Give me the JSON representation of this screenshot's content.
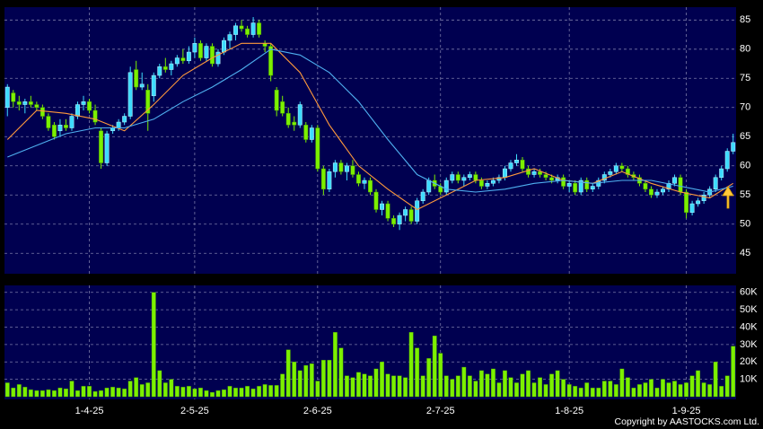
{
  "chart_data": [
    {
      "type": "candlestick",
      "up_color": "#3ddcff",
      "down_color": "#7cf000",
      "ohlc": [
        [
          70,
          74,
          68.5,
          73.5
        ],
        [
          72.5,
          73,
          70,
          71
        ],
        [
          71,
          72,
          69.5,
          70.5
        ],
        [
          70.5,
          71.5,
          69,
          71
        ],
        [
          71,
          72,
          70,
          70.5
        ],
        [
          70.5,
          71,
          69.5,
          70
        ],
        [
          70,
          70.5,
          68,
          68.5
        ],
        [
          68.5,
          69,
          66,
          66.5
        ],
        [
          67,
          67.5,
          64.5,
          65
        ],
        [
          66,
          68,
          65,
          67
        ],
        [
          67,
          68,
          66,
          66.5
        ],
        [
          66.5,
          69,
          66,
          68.5
        ],
        [
          68.5,
          71,
          68,
          70.5
        ],
        [
          70.5,
          72,
          69.5,
          71
        ],
        [
          71,
          71.5,
          69,
          69.5
        ],
        [
          69.5,
          70.5,
          67,
          67.5
        ],
        [
          66,
          66.5,
          59.5,
          60.5
        ],
        [
          60.5,
          66,
          60,
          65.5
        ],
        [
          66,
          67,
          65.5,
          66.5
        ],
        [
          66.5,
          68,
          66,
          67.5
        ],
        [
          67.5,
          69,
          67,
          68.5
        ],
        [
          68.5,
          77,
          68,
          76
        ],
        [
          76.5,
          78,
          73,
          73.5
        ],
        [
          73.5,
          76,
          73,
          74
        ],
        [
          73,
          74,
          66,
          69
        ],
        [
          72,
          76,
          71,
          75.5
        ],
        [
          75.5,
          77.5,
          75,
          77
        ],
        [
          77,
          78.5,
          76,
          76.5
        ],
        [
          76.5,
          78,
          75.5,
          77.5
        ],
        [
          77.5,
          79,
          77,
          78.5
        ],
        [
          78.5,
          80,
          77.5,
          78
        ],
        [
          78,
          80.5,
          77.5,
          79.5
        ],
        [
          79.5,
          82,
          78.5,
          81
        ],
        [
          81,
          81.5,
          78,
          78.5
        ],
        [
          78.5,
          81,
          78,
          80.5
        ],
        [
          80.5,
          81,
          77,
          77.5
        ],
        [
          77.5,
          80,
          77,
          79.5
        ],
        [
          79.5,
          82,
          79,
          81.5
        ],
        [
          81.5,
          83,
          80,
          82.5
        ],
        [
          82.5,
          84.5,
          81.5,
          84
        ],
        [
          84,
          85,
          83,
          83.5
        ],
        [
          83.5,
          84,
          82,
          82.5
        ],
        [
          82.5,
          85.5,
          82,
          84.5
        ],
        [
          84.5,
          85,
          82,
          82.5
        ],
        [
          81,
          81.5,
          79.5,
          80.5
        ],
        [
          80.5,
          81,
          74.5,
          75.5
        ],
        [
          73,
          73.5,
          68.5,
          69.5
        ],
        [
          71,
          72,
          68.5,
          69
        ],
        [
          69,
          70,
          66.5,
          67
        ],
        [
          67.5,
          68.5,
          66,
          67
        ],
        [
          67,
          71,
          66.5,
          70.5
        ],
        [
          67,
          67.5,
          64,
          64.5
        ],
        [
          64.5,
          67,
          64,
          66.5
        ],
        [
          66.5,
          67,
          59,
          59.5
        ],
        [
          59.5,
          60,
          55,
          56
        ],
        [
          56,
          59.5,
          55.5,
          59
        ],
        [
          59,
          61,
          58,
          60.5
        ],
        [
          60.5,
          61,
          58.5,
          59
        ],
        [
          59,
          60.5,
          57.5,
          60
        ],
        [
          60,
          61,
          58,
          58.5
        ],
        [
          58.5,
          59,
          56.5,
          57
        ],
        [
          57,
          58,
          56,
          57.5
        ],
        [
          57.5,
          58,
          55,
          55.5
        ],
        [
          55.5,
          56,
          52,
          52.5
        ],
        [
          52.5,
          54,
          51.5,
          53.5
        ],
        [
          53.5,
          54,
          50.5,
          51
        ],
        [
          51,
          51.5,
          49.5,
          50
        ],
        [
          50,
          52,
          49,
          51.5
        ],
        [
          51.5,
          53,
          50.5,
          52.5
        ],
        [
          52.5,
          53,
          50,
          50.5
        ],
        [
          50.5,
          54.5,
          50,
          54
        ],
        [
          54,
          56,
          53.5,
          55.5
        ],
        [
          55.5,
          58,
          55,
          57.5
        ],
        [
          57.5,
          58.5,
          56,
          56.5
        ],
        [
          56.5,
          57,
          55,
          55.5
        ],
        [
          55.5,
          58,
          55,
          57.5
        ],
        [
          57.5,
          59,
          57,
          58.5
        ],
        [
          58.5,
          59,
          57,
          57.5
        ],
        [
          57.5,
          58.5,
          56.5,
          58
        ],
        [
          58,
          59,
          57.5,
          58.5
        ],
        [
          58.5,
          59,
          57,
          57.5
        ],
        [
          57.5,
          58,
          56,
          56.5
        ],
        [
          56.5,
          57.5,
          56,
          57
        ],
        [
          57,
          58,
          56.5,
          57.5
        ],
        [
          57.5,
          58.5,
          57,
          58
        ],
        [
          58,
          60,
          57.5,
          59.5
        ],
        [
          59.5,
          61,
          59,
          60.5
        ],
        [
          60.5,
          62,
          60,
          61
        ],
        [
          61,
          61.5,
          59,
          59.5
        ],
        [
          59.5,
          60,
          58,
          58.5
        ],
        [
          58.5,
          59.5,
          58,
          59
        ],
        [
          59,
          59.5,
          58,
          58.5
        ],
        [
          58.5,
          59,
          57.5,
          58
        ],
        [
          58,
          58.5,
          57,
          57.5
        ],
        [
          57.5,
          58.5,
          57,
          58
        ],
        [
          58,
          58.5,
          56,
          56.5
        ],
        [
          56.5,
          57.5,
          55.5,
          57
        ],
        [
          57,
          57.5,
          55,
          55.5
        ],
        [
          55.5,
          58,
          55,
          57.5
        ],
        [
          57.5,
          58,
          55.5,
          56
        ],
        [
          56,
          57,
          55.5,
          56.5
        ],
        [
          56.5,
          58,
          56,
          57.5
        ],
        [
          57.5,
          59,
          57,
          58.5
        ],
        [
          58.5,
          59.5,
          58,
          59
        ],
        [
          59,
          60.5,
          58.5,
          60
        ],
        [
          60,
          60.5,
          59,
          59.5
        ],
        [
          59.5,
          60,
          58,
          58.5
        ],
        [
          58.5,
          59,
          57.5,
          58
        ],
        [
          58,
          58.5,
          56.5,
          57
        ],
        [
          57,
          57.5,
          55.5,
          56
        ],
        [
          56,
          56.5,
          54.5,
          55
        ],
        [
          55,
          56,
          54.5,
          55.5
        ],
        [
          55.5,
          56.5,
          55,
          56
        ],
        [
          56,
          57.5,
          55.5,
          57
        ],
        [
          57,
          58.5,
          56.5,
          58
        ],
        [
          58,
          58.5,
          55,
          55.5
        ],
        [
          55.5,
          56,
          51,
          52
        ],
        [
          52,
          54,
          51.5,
          53.5
        ],
        [
          53.5,
          54.5,
          53,
          54
        ],
        [
          54,
          55.5,
          53.5,
          55
        ],
        [
          55,
          56.5,
          54.5,
          56
        ],
        [
          56,
          58.5,
          55.5,
          58
        ],
        [
          58,
          60,
          57.5,
          59.5
        ],
        [
          59.5,
          63,
          59,
          62.5
        ],
        [
          62.5,
          65.5,
          62,
          64
        ]
      ],
      "lines": [
        {
          "color": "#ff9a3c",
          "x": [
            0,
            5,
            10,
            15,
            20,
            25,
            30,
            35,
            40,
            45,
            50,
            55,
            60,
            65,
            70,
            75,
            80,
            85,
            90,
            95,
            100,
            105,
            110,
            115,
            120,
            124
          ],
          "values": [
            64.5,
            69.5,
            69,
            68,
            66,
            70.5,
            75.5,
            78.5,
            81,
            81,
            76,
            67,
            60,
            56,
            52.5,
            55,
            57.5,
            58,
            59.5,
            57.5,
            57,
            59,
            57,
            55.5,
            54.5,
            57
          ]
        },
        {
          "color": "#4fb0f0",
          "x": [
            0,
            5,
            10,
            15,
            20,
            25,
            30,
            35,
            40,
            45,
            50,
            55,
            60,
            65,
            70,
            75,
            80,
            85,
            90,
            95,
            100,
            105,
            110,
            115,
            120,
            124
          ],
          "values": [
            61.5,
            63.5,
            65.5,
            66.5,
            66.5,
            68,
            71,
            73.5,
            76.5,
            80,
            79,
            76,
            71,
            64.5,
            58.5,
            56,
            55.5,
            56,
            57,
            57.5,
            57,
            57.5,
            57.5,
            56.5,
            55.5,
            56.5
          ]
        }
      ],
      "xlim": [
        -0.5,
        124.5
      ],
      "xticks": [
        {
          "value": 14,
          "label": "1-4-25"
        },
        {
          "value": 32,
          "label": "2-5-25"
        },
        {
          "value": 53,
          "label": "2-6-25"
        },
        {
          "value": 74,
          "label": "2-7-25"
        },
        {
          "value": 96,
          "label": "1-8-25"
        },
        {
          "value": 116,
          "label": "1-9-25"
        }
      ],
      "ylim": [
        41.5,
        87.2
      ],
      "yticks": [
        45,
        50,
        55,
        60,
        65,
        70,
        75,
        80,
        85
      ],
      "grid": true
    },
    {
      "type": "bar",
      "color": "#7cf000",
      "values": [
        8000,
        5000,
        7000,
        5500,
        4000,
        3500,
        3500,
        4000,
        3500,
        5000,
        4500,
        9000,
        3500,
        6000,
        6000,
        3000,
        3500,
        5000,
        5500,
        5000,
        4500,
        9000,
        11000,
        7000,
        8000,
        60000,
        15000,
        8000,
        10000,
        6000,
        5500,
        6000,
        4500,
        5000,
        3500,
        2500,
        3500,
        4000,
        6000,
        5000,
        5000,
        6000,
        4500,
        6000,
        7000,
        6500,
        6500,
        13000,
        27000,
        20000,
        15000,
        18000,
        19000,
        9000,
        21000,
        21000,
        37000,
        28000,
        12000,
        11000,
        14000,
        13000,
        12000,
        16000,
        20000,
        13000,
        12000,
        12000,
        11000,
        37000,
        28000,
        12000,
        22000,
        35000,
        25000,
        12000,
        10000,
        12000,
        17000,
        12000,
        9000,
        15000,
        13000,
        16000,
        8000,
        15000,
        11000,
        8000,
        13000,
        15000,
        8000,
        11000,
        7000,
        13000,
        15000,
        10000,
        7000,
        6000,
        5000,
        8000,
        5000,
        5000,
        9000,
        9000,
        7000,
        16000,
        11000,
        5000,
        7000,
        8000,
        10000,
        5000,
        10000,
        8000,
        9000,
        7000,
        8000,
        12000,
        15000,
        8000,
        7000,
        20000,
        6000,
        12000,
        29000
      ],
      "xlim": [
        -0.5,
        124.5
      ],
      "ylim": [
        0,
        64000
      ],
      "yticks": [
        {
          "value": 10000,
          "label": "10K"
        },
        {
          "value": 20000,
          "label": "20K"
        },
        {
          "value": 30000,
          "label": "30K"
        },
        {
          "value": 40000,
          "label": "40K"
        },
        {
          "value": 50000,
          "label": "50K"
        },
        {
          "value": 60000,
          "label": "60K"
        }
      ],
      "grid": true
    }
  ],
  "copyright": "Copyright by AASTOCKS.com Ltd."
}
